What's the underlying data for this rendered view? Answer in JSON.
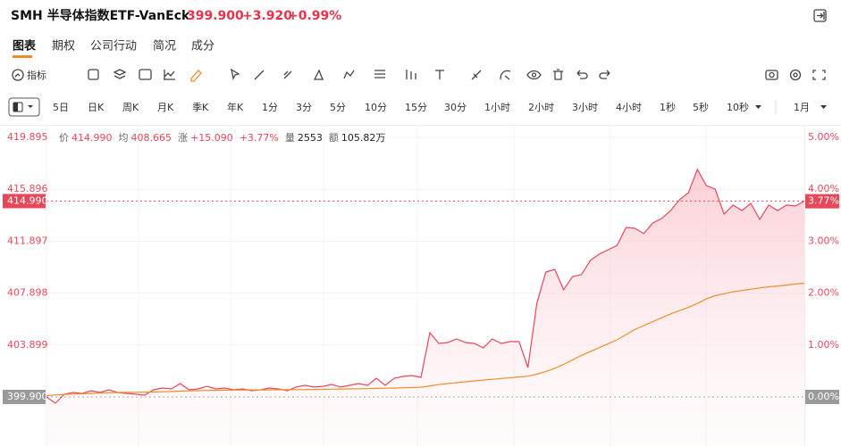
{
  "header": {
    "symbol": "SMH 半导体指数ETF-VanEck",
    "price": "399.900",
    "change": "+3.920",
    "change_pct": "+0.99%"
  },
  "tabs": [
    "图表",
    "期权",
    "公司行动",
    "简况",
    "成分"
  ],
  "toolbar": {
    "indicator": "指标"
  },
  "periods": [
    "5日",
    "日K",
    "周K",
    "月K",
    "季K",
    "年K",
    "1分",
    "3分",
    "5分",
    "10分",
    "15分",
    "30分",
    "1小时",
    "2小时",
    "3小时",
    "4小时",
    "1秒",
    "5秒",
    "10秒"
  ],
  "period_selected": "1月",
  "chart_data": {
    "type": "line",
    "info": [
      {
        "label": "价",
        "value": "414.990"
      },
      {
        "label": "均",
        "value": "408.665"
      },
      {
        "label": "涨",
        "value": "+15.090"
      },
      {
        "label": "",
        "value": "+3.77%"
      },
      {
        "label": "量",
        "value": "2553"
      },
      {
        "label": "额",
        "value": "105.82万"
      }
    ],
    "ylim": [
      396.12,
      420.86
    ],
    "yticks": [
      {
        "value": 399.9,
        "label": "399.900"
      },
      403.899,
      407.898,
      411.897,
      415.896,
      419.895
    ],
    "y2lim": [
      -0.945,
      5.241
    ],
    "y2ticks": [
      {
        "value": 0,
        "label": "0.00%"
      },
      {
        "value": 1,
        "label": "1.00%"
      },
      {
        "value": 2,
        "label": "2.00%"
      },
      {
        "value": 3,
        "label": "3.00%"
      },
      {
        "value": 4,
        "label": "4.00%"
      },
      {
        "value": 5,
        "label": "5.00%"
      }
    ],
    "last_price": {
      "value": 414.99,
      "label": "414.990"
    },
    "last_pct": {
      "value": 3.77,
      "label": "3.77%"
    },
    "grid": true,
    "series": [
      {
        "name": "价",
        "color": "#e8475a",
        "area": true,
        "values": [
          399.9,
          399.42,
          400.11,
          400.24,
          400.17,
          400.38,
          400.24,
          400.45,
          400.24,
          400.17,
          400.11,
          400.04,
          400.45,
          400.59,
          400.52,
          400.93,
          400.45,
          400.52,
          400.72,
          400.52,
          400.59,
          400.45,
          400.52,
          400.38,
          400.45,
          400.59,
          400.52,
          400.38,
          400.66,
          400.79,
          400.66,
          400.72,
          400.86,
          400.66,
          400.79,
          400.93,
          400.79,
          401.34,
          400.79,
          401.34,
          401.48,
          401.55,
          401.41,
          404.85,
          404.02,
          404.09,
          404.37,
          404.09,
          404.02,
          403.68,
          404.37,
          404.02,
          404.16,
          404.16,
          402.17,
          407.12,
          409.52,
          409.73,
          408.15,
          409.18,
          409.32,
          410.42,
          410.9,
          411.24,
          411.58,
          412.96,
          412.89,
          412.48,
          413.3,
          413.65,
          414.26,
          415.09,
          415.64,
          417.43,
          416.19,
          415.91,
          413.99,
          414.68,
          414.26,
          414.81,
          413.58,
          414.68,
          414.26,
          414.68,
          414.61,
          414.99
        ]
      },
      {
        "name": "均",
        "color": "#f08c2a",
        "area": false,
        "values": [
          400.0,
          400.05,
          400.1,
          400.12,
          400.15,
          400.17,
          400.2,
          400.22,
          400.24,
          400.25,
          400.26,
          400.27,
          400.28,
          400.3,
          400.32,
          400.35,
          400.37,
          400.38,
          400.4,
          400.41,
          400.42,
          400.43,
          400.43,
          400.44,
          400.44,
          400.45,
          400.45,
          400.46,
          400.46,
          400.47,
          400.48,
          400.49,
          400.5,
          400.51,
          400.52,
          400.53,
          400.54,
          400.56,
          400.57,
          400.59,
          400.61,
          400.63,
          400.65,
          400.75,
          400.85,
          400.93,
          401.0,
          401.07,
          401.14,
          401.2,
          401.26,
          401.32,
          401.38,
          401.44,
          401.5,
          401.65,
          401.85,
          402.1,
          402.4,
          402.75,
          403.1,
          403.4,
          403.7,
          404.0,
          404.3,
          404.7,
          405.1,
          405.4,
          405.7,
          406.0,
          406.3,
          406.55,
          406.8,
          407.1,
          407.45,
          407.7,
          407.85,
          408.0,
          408.1,
          408.2,
          408.3,
          408.38,
          408.45,
          408.52,
          408.6,
          408.665
        ]
      }
    ]
  }
}
